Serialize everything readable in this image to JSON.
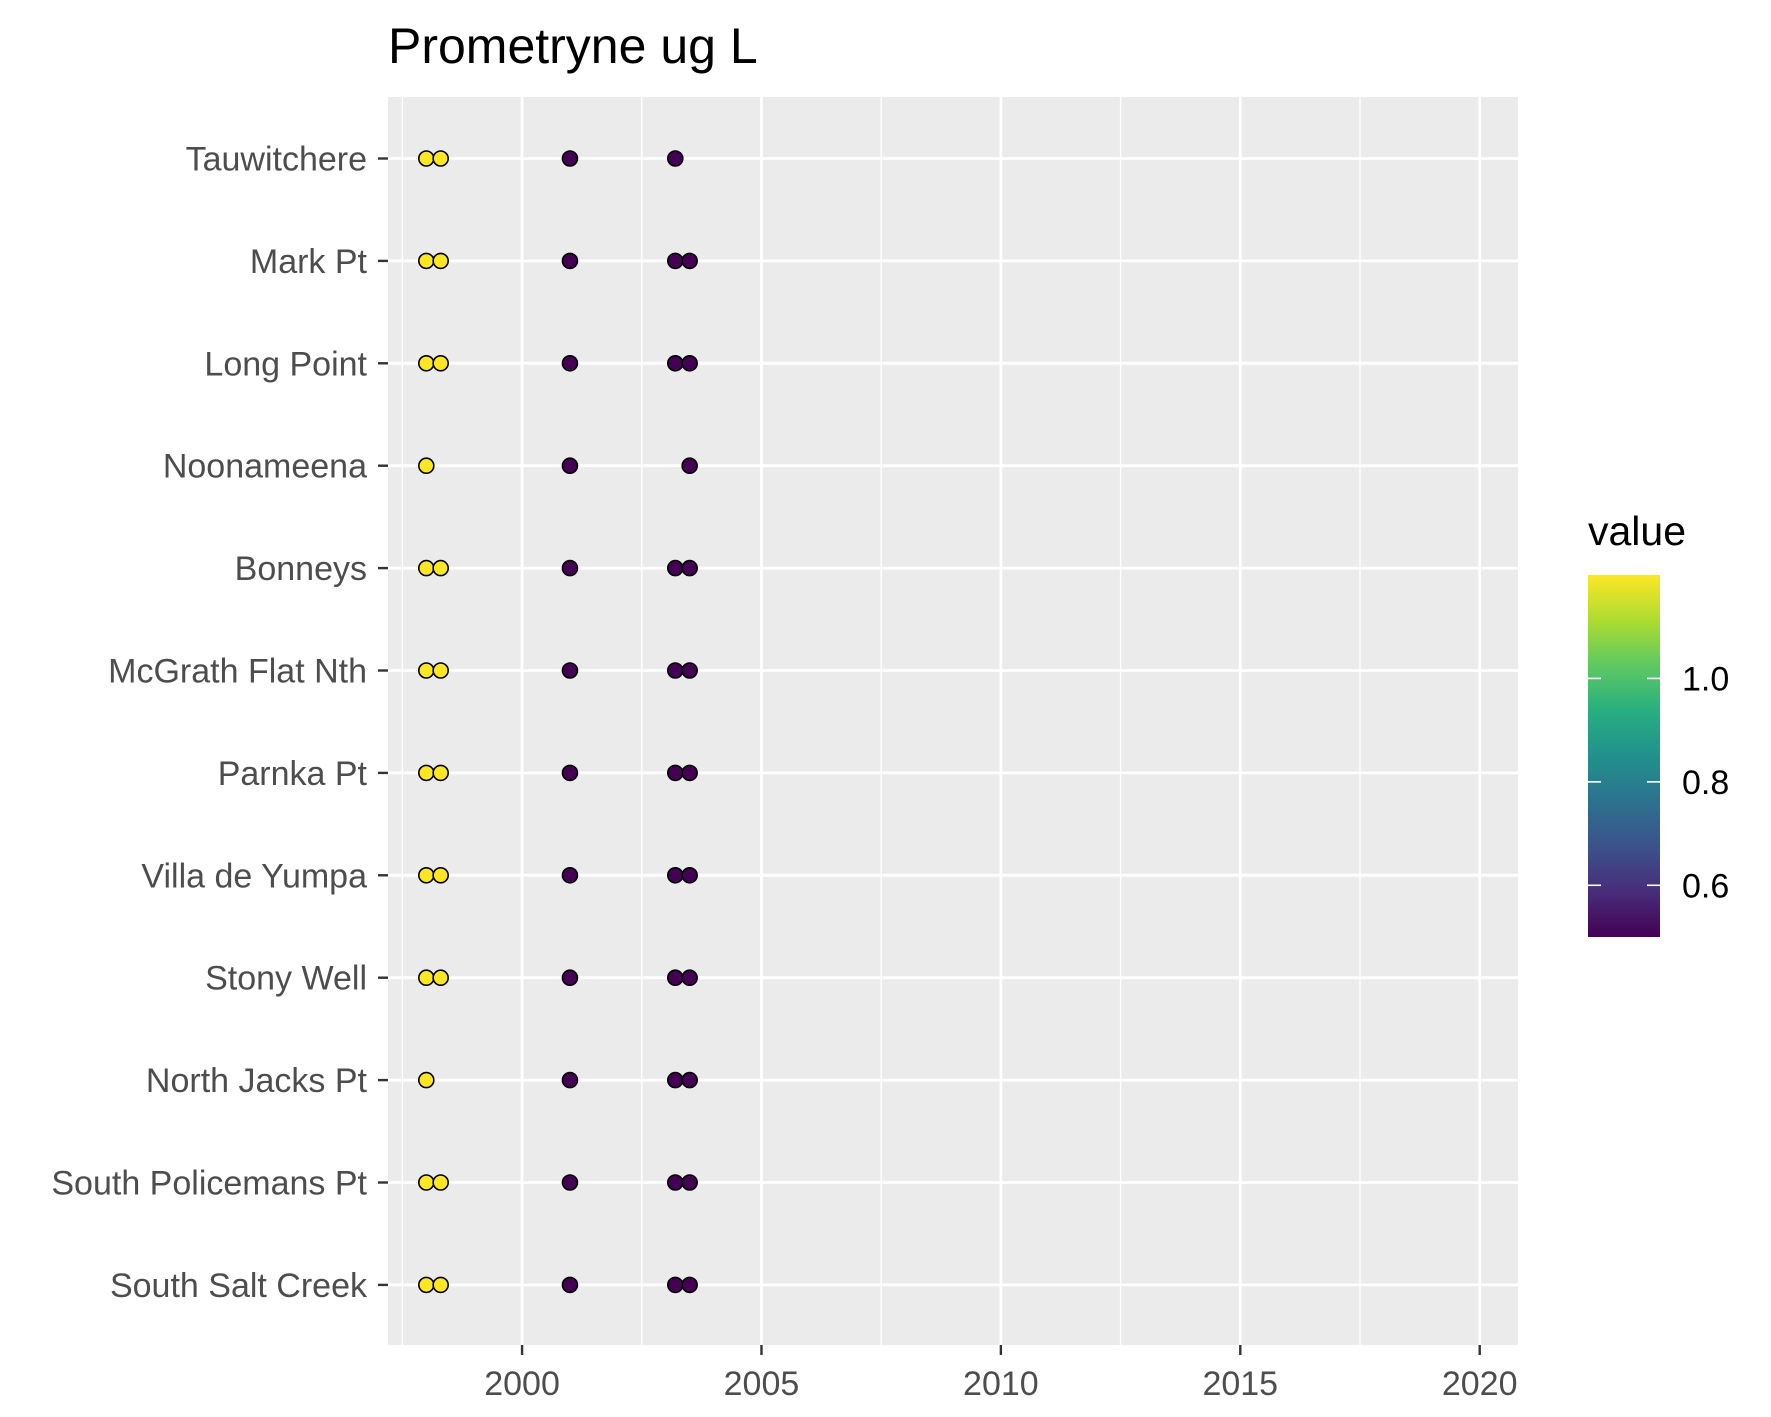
{
  "chart_data": {
    "type": "scatter",
    "title": "Prometryne ug L",
    "xlabel": "",
    "ylabel": "",
    "xlim": [
      1997.2,
      2020.8
    ],
    "x_ticks": [
      2000,
      2005,
      2010,
      2015,
      2020
    ],
    "x_minor": [
      1997.5,
      2002.5,
      2007.5,
      2012.5,
      2017.5
    ],
    "categories": [
      "Tauwitchere",
      "Mark Pt",
      "Long Point",
      "Noonameena",
      "Bonneys",
      "McGrath Flat Nth",
      "Parnka Pt",
      "Villa de Yumpa",
      "Stony Well",
      "North Jacks Pt",
      "South Policemans Pt",
      "South Salt Creek"
    ],
    "grid": true,
    "legend": {
      "title": "value",
      "position": "right",
      "range": [
        0.5,
        1.2
      ],
      "ticks": [
        0.6,
        0.8,
        1.0
      ],
      "tick_labels": [
        "0.6",
        "0.8",
        "1.0"
      ]
    },
    "points": [
      {
        "site": "Tauwitchere",
        "x": 1998.0,
        "value": 1.2
      },
      {
        "site": "Tauwitchere",
        "x": 1998.3,
        "value": 1.2
      },
      {
        "site": "Tauwitchere",
        "x": 2001.0,
        "value": 0.5
      },
      {
        "site": "Tauwitchere",
        "x": 2003.2,
        "value": 0.5
      },
      {
        "site": "Mark Pt",
        "x": 1998.0,
        "value": 1.2
      },
      {
        "site": "Mark Pt",
        "x": 1998.3,
        "value": 1.2
      },
      {
        "site": "Mark Pt",
        "x": 2001.0,
        "value": 0.5
      },
      {
        "site": "Mark Pt",
        "x": 2003.2,
        "value": 0.5
      },
      {
        "site": "Mark Pt",
        "x": 2003.5,
        "value": 0.5
      },
      {
        "site": "Long Point",
        "x": 1998.0,
        "value": 1.2
      },
      {
        "site": "Long Point",
        "x": 1998.3,
        "value": 1.2
      },
      {
        "site": "Long Point",
        "x": 2001.0,
        "value": 0.5
      },
      {
        "site": "Long Point",
        "x": 2003.2,
        "value": 0.5
      },
      {
        "site": "Long Point",
        "x": 2003.5,
        "value": 0.5
      },
      {
        "site": "Noonameena",
        "x": 1998.0,
        "value": 1.2
      },
      {
        "site": "Noonameena",
        "x": 2001.0,
        "value": 0.5
      },
      {
        "site": "Noonameena",
        "x": 2003.5,
        "value": 0.5
      },
      {
        "site": "Bonneys",
        "x": 1998.0,
        "value": 1.2
      },
      {
        "site": "Bonneys",
        "x": 1998.3,
        "value": 1.2
      },
      {
        "site": "Bonneys",
        "x": 2001.0,
        "value": 0.5
      },
      {
        "site": "Bonneys",
        "x": 2003.2,
        "value": 0.5
      },
      {
        "site": "Bonneys",
        "x": 2003.5,
        "value": 0.5
      },
      {
        "site": "McGrath Flat Nth",
        "x": 1998.0,
        "value": 1.2
      },
      {
        "site": "McGrath Flat Nth",
        "x": 1998.3,
        "value": 1.2
      },
      {
        "site": "McGrath Flat Nth",
        "x": 2001.0,
        "value": 0.5
      },
      {
        "site": "McGrath Flat Nth",
        "x": 2003.2,
        "value": 0.5
      },
      {
        "site": "McGrath Flat Nth",
        "x": 2003.5,
        "value": 0.5
      },
      {
        "site": "Parnka Pt",
        "x": 1998.0,
        "value": 1.2
      },
      {
        "site": "Parnka Pt",
        "x": 1998.3,
        "value": 1.2
      },
      {
        "site": "Parnka Pt",
        "x": 2001.0,
        "value": 0.5
      },
      {
        "site": "Parnka Pt",
        "x": 2003.2,
        "value": 0.5
      },
      {
        "site": "Parnka Pt",
        "x": 2003.5,
        "value": 0.5
      },
      {
        "site": "Villa de Yumpa",
        "x": 1998.0,
        "value": 1.2
      },
      {
        "site": "Villa de Yumpa",
        "x": 1998.3,
        "value": 1.2
      },
      {
        "site": "Villa de Yumpa",
        "x": 2001.0,
        "value": 0.5
      },
      {
        "site": "Villa de Yumpa",
        "x": 2003.2,
        "value": 0.5
      },
      {
        "site": "Villa de Yumpa",
        "x": 2003.5,
        "value": 0.5
      },
      {
        "site": "Stony Well",
        "x": 1998.0,
        "value": 1.2
      },
      {
        "site": "Stony Well",
        "x": 1998.3,
        "value": 1.2
      },
      {
        "site": "Stony Well",
        "x": 2001.0,
        "value": 0.5
      },
      {
        "site": "Stony Well",
        "x": 2003.2,
        "value": 0.5
      },
      {
        "site": "Stony Well",
        "x": 2003.5,
        "value": 0.5
      },
      {
        "site": "North Jacks Pt",
        "x": 1998.0,
        "value": 1.2
      },
      {
        "site": "North Jacks Pt",
        "x": 2001.0,
        "value": 0.5
      },
      {
        "site": "North Jacks Pt",
        "x": 2003.2,
        "value": 0.5
      },
      {
        "site": "North Jacks Pt",
        "x": 2003.5,
        "value": 0.5
      },
      {
        "site": "South Policemans Pt",
        "x": 1998.0,
        "value": 1.2
      },
      {
        "site": "South Policemans Pt",
        "x": 1998.3,
        "value": 1.2
      },
      {
        "site": "South Policemans Pt",
        "x": 2001.0,
        "value": 0.5
      },
      {
        "site": "South Policemans Pt",
        "x": 2003.2,
        "value": 0.5
      },
      {
        "site": "South Policemans Pt",
        "x": 2003.5,
        "value": 0.5
      },
      {
        "site": "South Salt Creek",
        "x": 1998.0,
        "value": 1.2
      },
      {
        "site": "South Salt Creek",
        "x": 1998.3,
        "value": 1.2
      },
      {
        "site": "South Salt Creek",
        "x": 2001.0,
        "value": 0.5
      },
      {
        "site": "South Salt Creek",
        "x": 2003.2,
        "value": 0.5
      },
      {
        "site": "South Salt Creek",
        "x": 2003.5,
        "value": 0.5
      }
    ]
  }
}
